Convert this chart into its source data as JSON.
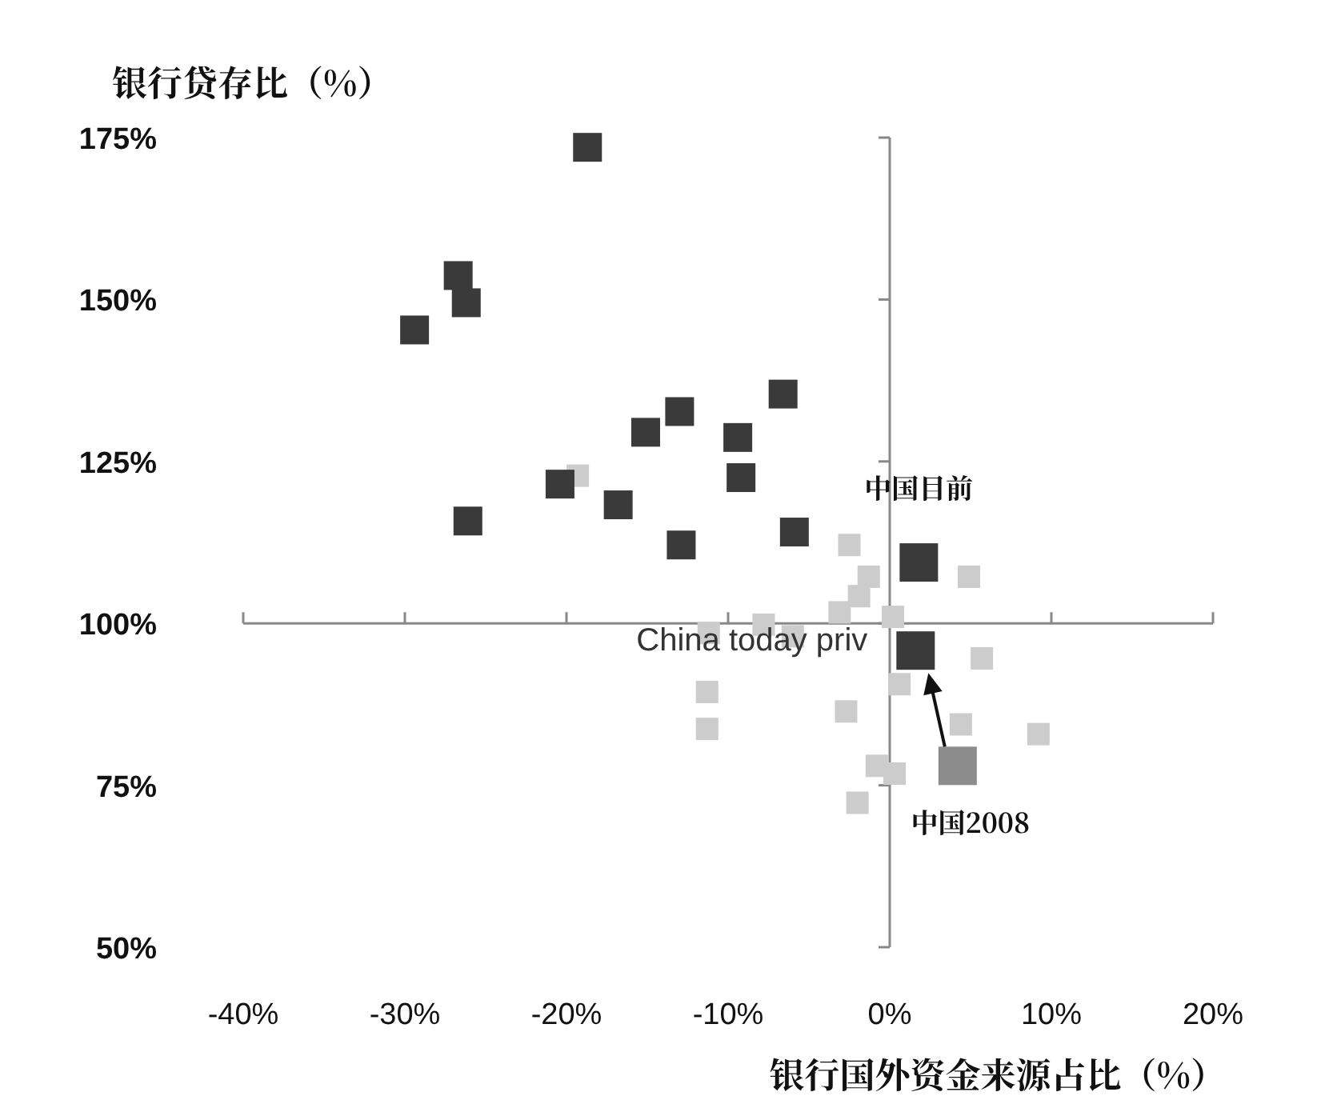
{
  "chart_data": {
    "type": "scatter",
    "xlabel": "银行国外资金来源占比（%）",
    "ylabel": "银行贷存比（%）",
    "marker": "square",
    "xlim": [
      -40,
      20
    ],
    "ylim": [
      50,
      175
    ],
    "xticks": [
      {
        "value": -40,
        "label": "-40%"
      },
      {
        "value": -30,
        "label": "-30%"
      },
      {
        "value": -20,
        "label": "-20%"
      },
      {
        "value": -10,
        "label": "-10%"
      },
      {
        "value": 0,
        "label": "0%"
      },
      {
        "value": 10,
        "label": "10%"
      },
      {
        "value": 20,
        "label": "20%"
      }
    ],
    "yticks": [
      {
        "value": 50,
        "label": "50%"
      },
      {
        "value": 75,
        "label": "75%"
      },
      {
        "value": 100,
        "label": "100%"
      },
      {
        "value": 125,
        "label": "125%"
      },
      {
        "value": 150,
        "label": "150%"
      },
      {
        "value": 175,
        "label": "175%"
      }
    ],
    "series": [
      {
        "color": "#cccccc",
        "x": [
          -19.3,
          -2.5,
          -1.3,
          -1.9,
          -3.1,
          0.2,
          4.9,
          -7.8,
          -11.2,
          -6.0,
          -11.3,
          -11.3,
          -2.7,
          0.6,
          5.7,
          4.4,
          9.2,
          -0.8,
          0.3,
          -2.0
        ],
        "values": [
          122.8,
          112.1,
          107.2,
          104.2,
          101.7,
          101,
          107.2,
          99.8,
          98.5,
          98,
          89.4,
          83.7,
          86.4,
          90.6,
          94.6,
          84.4,
          82.9,
          78,
          76.8,
          72.3
        ]
      },
      {
        "color": "#3a3a3a",
        "x": [
          -18.7,
          -26.7,
          -26.2,
          -29.4,
          -26.1,
          -20.4,
          -16.8,
          -15.1,
          -13.0,
          -12.9,
          -9.4,
          -9.2,
          -6.6,
          -5.9
        ],
        "values": [
          173.5,
          153.7,
          149.5,
          145.3,
          115.8,
          121.5,
          118.3,
          129.5,
          132.7,
          112.1,
          128.7,
          122.5,
          135.4,
          114.1
        ]
      },
      {
        "color": "#3a3a3a",
        "x": [
          1.8,
          1.6
        ],
        "values": [
          109.4,
          95.8
        ]
      },
      {
        "color": "#8c8c8c",
        "x": [
          4.2
        ],
        "values": [
          78
        ]
      }
    ],
    "annotations": [
      {
        "text": "中国目前",
        "x": 1.8,
        "y": 109.4
      },
      {
        "text": "China today priv",
        "x": 1.6,
        "y": 95.8
      },
      {
        "text": "中国2008",
        "x": 4.2,
        "y": 78
      }
    ]
  }
}
